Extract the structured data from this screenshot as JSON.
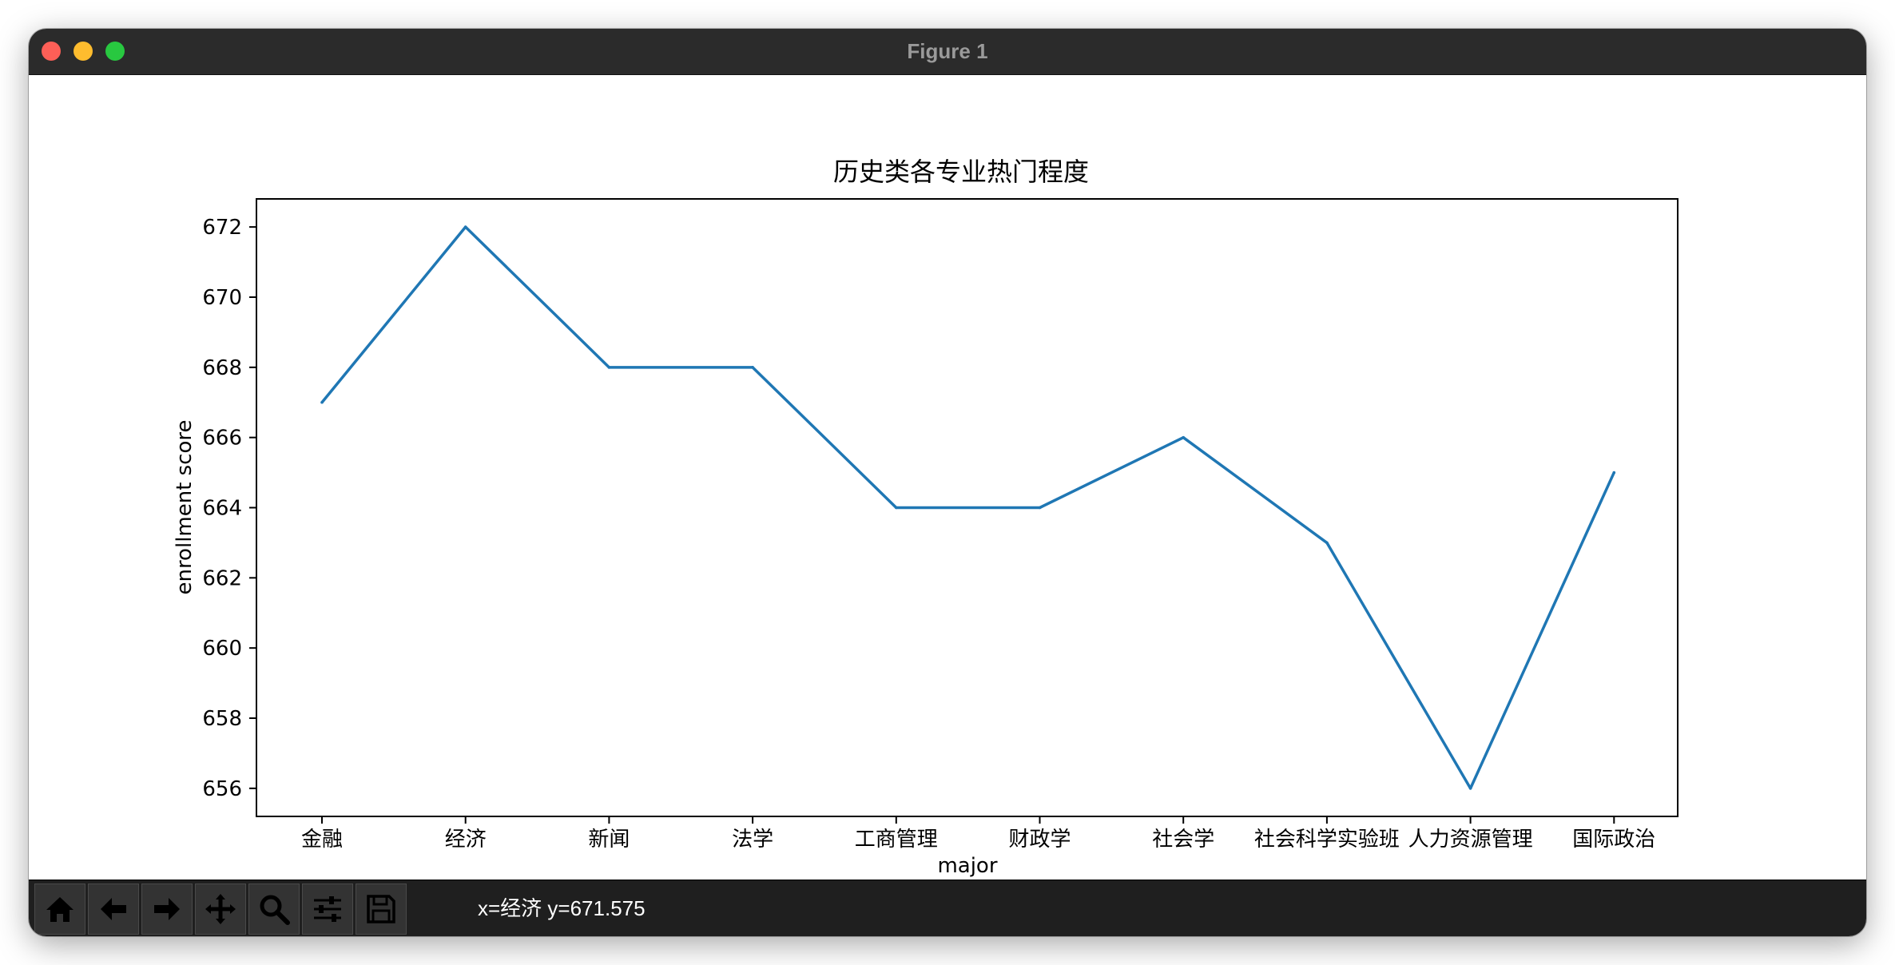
{
  "window": {
    "title": "Figure 1"
  },
  "toolbar": {
    "tools": [
      {
        "name": "home-icon"
      },
      {
        "name": "back-arrow-icon"
      },
      {
        "name": "forward-arrow-icon"
      },
      {
        "name": "pan-move-icon"
      },
      {
        "name": "zoom-magnifier-icon"
      },
      {
        "name": "configure-subplots-icon"
      },
      {
        "name": "save-floppy-icon"
      }
    ],
    "coords_text": "x=经济 y=671.575"
  },
  "chart_data": {
    "type": "line",
    "title": "历史类各专业热门程度",
    "xlabel": "major",
    "ylabel": "enrollment score",
    "categories": [
      "金融",
      "经济",
      "新闻",
      "法学",
      "工商管理",
      "财政学",
      "社会学",
      "社会科学实验班",
      "人力资源管理",
      "国际政治"
    ],
    "series": [
      {
        "values": [
          667,
          672,
          668,
          668,
          664,
          664,
          666,
          663,
          656,
          665
        ],
        "color": "#1f77b4"
      }
    ],
    "ylim": [
      655.2,
      672.8
    ],
    "yticks": [
      656,
      658,
      660,
      662,
      664,
      666,
      668,
      670,
      672
    ],
    "ytick_labels": [
      "656",
      "658",
      "660",
      "662",
      "664",
      "666",
      "668",
      "670",
      "672"
    ],
    "grid": false,
    "legend": "none"
  }
}
